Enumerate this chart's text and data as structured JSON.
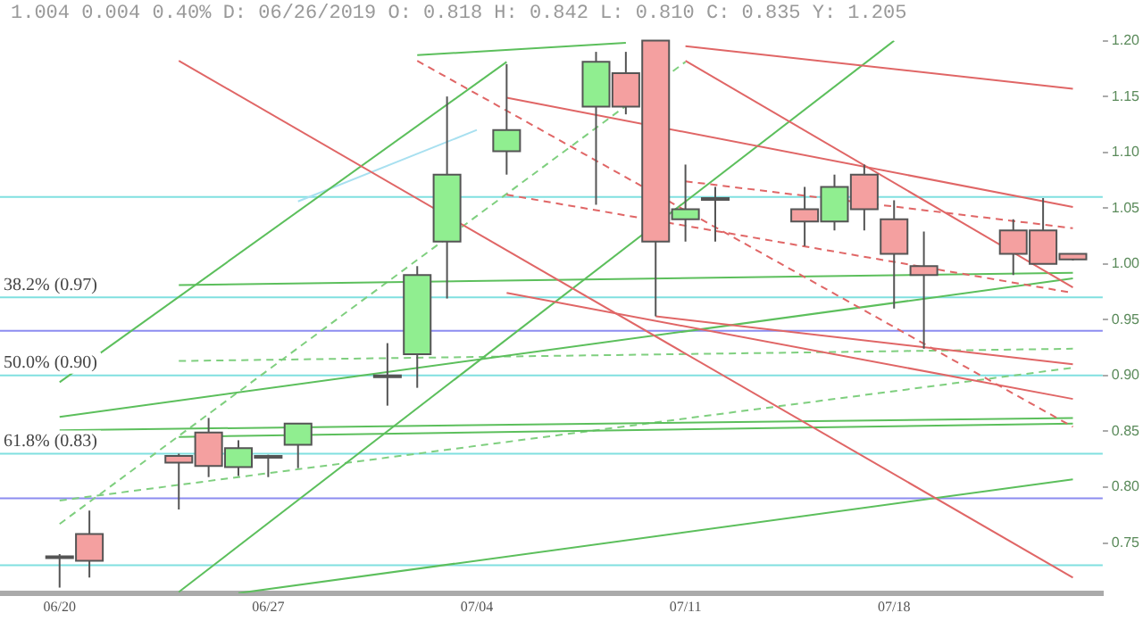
{
  "chart_data": {
    "type": "candlestick",
    "title": "1.004 0.004 0.40% D: 06/26/2019 O: 0.818 H: 0.842 L: 0.810 C: 0.835 Y: 1.205",
    "x": [
      "2019-06-20",
      "2019-06-21",
      "2019-06-24",
      "2019-06-25",
      "2019-06-26",
      "2019-06-27",
      "2019-06-28",
      "2019-07-01",
      "2019-07-02",
      "2019-07-03",
      "2019-07-05",
      "2019-07-08",
      "2019-07-09",
      "2019-07-10",
      "2019-07-11",
      "2019-07-12",
      "2019-07-15",
      "2019-07-16",
      "2019-07-17",
      "2019-07-18",
      "2019-07-19",
      "2019-07-22",
      "2019-07-23",
      "2019-07-24"
    ],
    "ohlc": [
      [
        0.738,
        0.74,
        0.71,
        0.738
      ],
      [
        0.758,
        0.779,
        0.719,
        0.734
      ],
      [
        0.828,
        0.83,
        0.78,
        0.822
      ],
      [
        0.849,
        0.862,
        0.809,
        0.819
      ],
      [
        0.818,
        0.842,
        0.81,
        0.835
      ],
      [
        0.828,
        0.829,
        0.809,
        0.828
      ],
      [
        0.838,
        0.857,
        0.817,
        0.857
      ],
      [
        0.9,
        0.929,
        0.873,
        0.9
      ],
      [
        0.919,
        0.998,
        0.889,
        0.99
      ],
      [
        1.02,
        1.15,
        0.969,
        1.08
      ],
      [
        1.101,
        1.179,
        1.08,
        1.12
      ],
      [
        1.141,
        1.19,
        1.053,
        1.181
      ],
      [
        1.171,
        1.19,
        1.134,
        1.141
      ],
      [
        1.2,
        1.2,
        0.953,
        1.02
      ],
      [
        1.04,
        1.089,
        1.02,
        1.049
      ],
      [
        1.059,
        1.069,
        1.02,
        1.059
      ],
      [
        1.049,
        1.069,
        1.016,
        1.038
      ],
      [
        1.038,
        1.08,
        1.03,
        1.069
      ],
      [
        1.08,
        1.089,
        1.03,
        1.049
      ],
      [
        1.04,
        1.057,
        0.96,
        1.009
      ],
      [
        0.998,
        1.029,
        0.924,
        0.99
      ],
      [
        1.03,
        1.04,
        0.99,
        1.009
      ],
      [
        1.03,
        1.059,
        1.0,
        1.0
      ],
      [
        1.009,
        1.009,
        1.003,
        1.004
      ]
    ],
    "colors": [
      "#90ee90",
      "#f4a0a0",
      "#f4a0a0",
      "#f4a0a0",
      "#90ee90",
      "#90ee90",
      "#90ee90",
      "#90ee90",
      "#90ee90",
      "#90ee90",
      "#90ee90",
      "#90ee90",
      "#f4a0a0",
      "#f4a0a0",
      "#90ee90",
      "#90ee90",
      "#f4a0a0",
      "#90ee90",
      "#f4a0a0",
      "#f4a0a0",
      "#f4a0a0",
      "#f4a0a0",
      "#f4a0a0",
      "#f4a0a0"
    ],
    "series": [
      {
        "type": "line",
        "x": [
          "2019-06-24",
          "2019-07-24"
        ],
        "values": [
          1.182,
          0.719
        ],
        "color": "#e06666",
        "line_style": "solid"
      },
      {
        "type": "line",
        "x": [
          "2019-07-05",
          "2019-07-24"
        ],
        "values": [
          1.149,
          1.051
        ],
        "color": "#e06666",
        "line_style": "solid"
      },
      {
        "type": "line",
        "x": [
          "2019-07-11",
          "2019-07-24"
        ],
        "values": [
          1.195,
          1.157
        ],
        "color": "#e06666",
        "line_style": "solid"
      },
      {
        "type": "line",
        "x": [
          "2019-07-11",
          "2019-07-24"
        ],
        "values": [
          1.182,
          0.979
        ],
        "color": "#e06666",
        "line_style": "solid"
      },
      {
        "type": "line",
        "x": [
          "2019-07-10",
          "2019-07-24"
        ],
        "values": [
          0.953,
          0.91
        ],
        "color": "#e06666",
        "line_style": "solid"
      },
      {
        "type": "line",
        "x": [
          "2019-07-05",
          "2019-07-24"
        ],
        "values": [
          0.974,
          0.879
        ],
        "color": "#e06666",
        "line_style": "solid"
      },
      {
        "type": "line",
        "x": [
          "2019-07-02",
          "2019-07-24"
        ],
        "values": [
          1.182,
          0.854
        ],
        "color": "#e06666",
        "line_style": "dashed"
      },
      {
        "type": "line",
        "x": [
          "2019-07-11",
          "2019-07-24"
        ],
        "values": [
          1.074,
          1.032
        ],
        "color": "#e06666",
        "line_style": "dashed"
      },
      {
        "type": "line",
        "x": [
          "2019-07-05",
          "2019-07-24"
        ],
        "values": [
          1.062,
          0.974
        ],
        "color": "#e06666",
        "line_style": "dashed"
      },
      {
        "type": "line",
        "x": [
          "2019-06-20",
          "2019-07-05"
        ],
        "values": [
          0.894,
          1.181
        ],
        "color": "#5cbf5c",
        "line_style": "solid"
      },
      {
        "type": "line",
        "x": [
          "2019-06-24",
          "2019-07-18"
        ],
        "values": [
          0.706,
          1.2
        ],
        "color": "#5cbf5c",
        "line_style": "solid"
      },
      {
        "type": "line",
        "x": [
          "2019-06-26",
          "2019-07-24"
        ],
        "values": [
          0.705,
          0.807
        ],
        "color": "#5cbf5c",
        "line_style": "solid"
      },
      {
        "type": "line",
        "x": [
          "2019-06-20",
          "2019-07-24"
        ],
        "values": [
          0.863,
          0.987
        ],
        "color": "#5cbf5c",
        "line_style": "solid"
      },
      {
        "type": "line",
        "x": [
          "2019-06-24",
          "2019-07-24"
        ],
        "values": [
          0.981,
          0.992
        ],
        "color": "#5cbf5c",
        "line_style": "solid"
      },
      {
        "type": "line",
        "x": [
          "2019-06-20",
          "2019-07-24"
        ],
        "values": [
          0.851,
          0.862
        ],
        "color": "#5cbf5c",
        "line_style": "solid"
      },
      {
        "type": "line",
        "x": [
          "2019-06-24",
          "2019-07-24"
        ],
        "values": [
          0.845,
          0.857
        ],
        "color": "#5cbf5c",
        "line_style": "solid"
      },
      {
        "type": "line",
        "x": [
          "2019-07-02",
          "2019-07-09"
        ],
        "values": [
          1.187,
          1.198
        ],
        "color": "#5cbf5c",
        "line_style": "solid"
      },
      {
        "type": "line",
        "x": [
          "2019-06-20",
          "2019-07-11"
        ],
        "values": [
          0.767,
          1.181
        ],
        "color": "#7fcf7f",
        "line_style": "dashed"
      },
      {
        "type": "line",
        "x": [
          "2019-06-24",
          "2019-07-24"
        ],
        "values": [
          0.913,
          0.924
        ],
        "color": "#7fcf7f",
        "line_style": "dashed"
      },
      {
        "type": "line",
        "x": [
          "2019-06-20",
          "2019-07-24"
        ],
        "values": [
          0.788,
          0.907
        ],
        "color": "#7fcf7f",
        "line_style": "dashed"
      },
      {
        "type": "line",
        "x": [
          "2019-06-28",
          "2019-07-04"
        ],
        "values": [
          1.056,
          1.12
        ],
        "color": "#a8e0f0",
        "line_style": "solid"
      }
    ],
    "ref_lines": [
      {
        "axis": "y",
        "value": 1.06,
        "label": null,
        "color": "#80e0e0"
      },
      {
        "axis": "y",
        "value": 0.97,
        "label": "38.2% (0.97)",
        "color": "#80e0e0"
      },
      {
        "axis": "y",
        "value": 0.94,
        "label": null,
        "color": "#8c8cf0"
      },
      {
        "axis": "y",
        "value": 0.9,
        "label": "50.0% (0.90)",
        "color": "#80e0e0"
      },
      {
        "axis": "y",
        "value": 0.83,
        "label": "61.8% (0.83)",
        "color": "#80e0e0"
      },
      {
        "axis": "y",
        "value": 0.79,
        "label": null,
        "color": "#8c8cf0"
      },
      {
        "axis": "y",
        "value": 0.73,
        "label": null,
        "color": "#80e0e0"
      }
    ],
    "ylim": [
      0.705,
      1.2
    ],
    "yticks": [
      {
        "value": 1.2,
        "label": "1.20"
      },
      {
        "value": 1.15,
        "label": "1.15"
      },
      {
        "value": 1.1,
        "label": "1.10"
      },
      {
        "value": 1.05,
        "label": "1.05"
      },
      {
        "value": 1.0,
        "label": "1.00"
      },
      {
        "value": 0.95,
        "label": "0.95"
      },
      {
        "value": 0.9,
        "label": "0.90"
      },
      {
        "value": 0.85,
        "label": "0.85"
      },
      {
        "value": 0.8,
        "label": "0.80"
      },
      {
        "value": 0.75,
        "label": "0.75"
      }
    ],
    "xticks": [
      {
        "value": "2019-06-20",
        "label": "06/20"
      },
      {
        "value": "2019-06-27",
        "label": "06/27"
      },
      {
        "value": "2019-07-04",
        "label": "07/04"
      },
      {
        "value": "2019-07-11",
        "label": "07/11"
      },
      {
        "value": "2019-07-18",
        "label": "07/18"
      }
    ],
    "xlim": [
      "2019-06-18",
      "2019-07-25"
    ],
    "marker": "none"
  }
}
